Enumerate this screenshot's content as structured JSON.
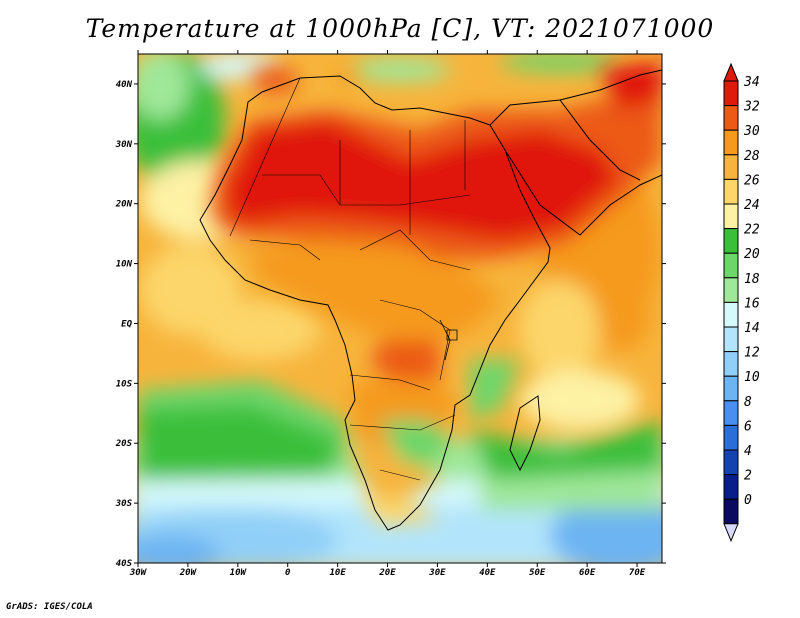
{
  "title": "Temperature at 1000hPa [C], VT: 2021071000",
  "credit": "GrADS: IGES/COLA",
  "map": {
    "variable": "Temperature",
    "level": "1000hPa",
    "units": "C",
    "valid_time": "2021071000",
    "lon_range": [
      -30,
      75
    ],
    "lat_range": [
      -40,
      45
    ],
    "lon_ticks": [
      {
        "lon": -30,
        "label": "30W"
      },
      {
        "lon": -20,
        "label": "20W"
      },
      {
        "lon": -10,
        "label": "10W"
      },
      {
        "lon": 0,
        "label": "0"
      },
      {
        "lon": 10,
        "label": "10E"
      },
      {
        "lon": 20,
        "label": "20E"
      },
      {
        "lon": 30,
        "label": "30E"
      },
      {
        "lon": 40,
        "label": "40E"
      },
      {
        "lon": 50,
        "label": "50E"
      },
      {
        "lon": 60,
        "label": "60E"
      },
      {
        "lon": 70,
        "label": "70E"
      }
    ],
    "lat_ticks": [
      {
        "lat": 40,
        "label": "40N"
      },
      {
        "lat": 30,
        "label": "30N"
      },
      {
        "lat": 20,
        "label": "20N"
      },
      {
        "lat": 10,
        "label": "10N"
      },
      {
        "lat": 0,
        "label": "EQ"
      },
      {
        "lat": -10,
        "label": "10S"
      },
      {
        "lat": -20,
        "label": "20S"
      },
      {
        "lat": -30,
        "label": "30S"
      },
      {
        "lat": -40,
        "label": "40S"
      }
    ]
  },
  "colorbar": {
    "levels": [
      {
        "label": "34",
        "color": "#e0190d"
      },
      {
        "label": "32",
        "color": "#ec5a16"
      },
      {
        "label": "30",
        "color": "#f59a1c"
      },
      {
        "label": "28",
        "color": "#f7b43c"
      },
      {
        "label": "26",
        "color": "#fcd66a"
      },
      {
        "label": "24",
        "color": "#fdf1a4"
      },
      {
        "label": "22",
        "color": "#3bbf3a"
      },
      {
        "label": "20",
        "color": "#6dd66a"
      },
      {
        "label": "18",
        "color": "#9fe799"
      },
      {
        "label": "16",
        "color": "#d6f9fb"
      },
      {
        "label": "14",
        "color": "#b2e5fb"
      },
      {
        "label": "12",
        "color": "#90cff7"
      },
      {
        "label": "10",
        "color": "#6db4f2"
      },
      {
        "label": "8",
        "color": "#4a8ef0"
      },
      {
        "label": "6",
        "color": "#2c6ed8"
      },
      {
        "label": "4",
        "color": "#1443b0"
      },
      {
        "label": "2",
        "color": "#081e8a"
      },
      {
        "label": "0",
        "color": "#0a0a5e"
      }
    ],
    "over_color": "#e0190d",
    "under_color": "#d8d8ff"
  }
}
